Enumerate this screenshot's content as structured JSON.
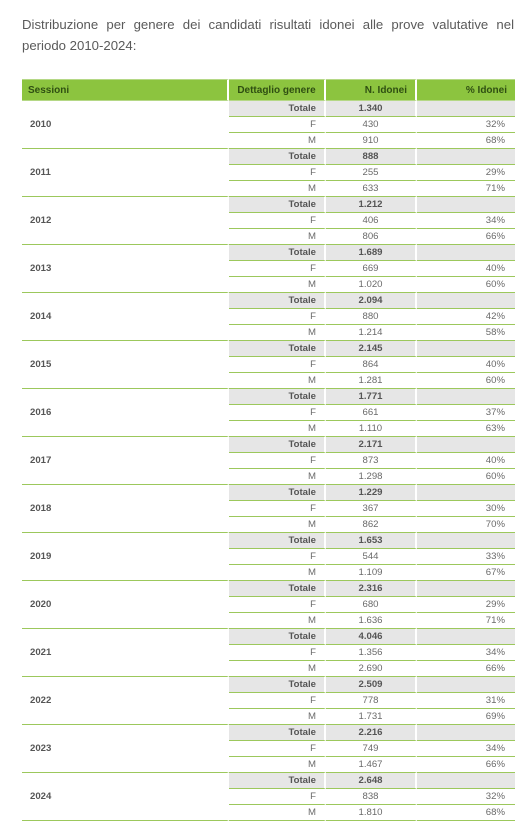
{
  "intro": "Distribuzione per genere dei candidati risultati idonei alle prove valutative nel periodo 2010-2024:",
  "headers": {
    "sessioni": "Sessioni",
    "dettaglio": "Dettaglio genere",
    "n_idonei": "N. Idonei",
    "pct_idonei": "% Idonei"
  },
  "labels": {
    "totale": "Totale",
    "f": "F",
    "m": "M"
  },
  "colors": {
    "header_bg": "#8cc43f",
    "rule": "#9cc85c",
    "total_bg": "#e6e6e6"
  },
  "rows": [
    {
      "year": "2010",
      "total": "1.340",
      "f": "430",
      "f_pct": "32%",
      "m": "910",
      "m_pct": "68%"
    },
    {
      "year": "2011",
      "total": "888",
      "f": "255",
      "f_pct": "29%",
      "m": "633",
      "m_pct": "71%"
    },
    {
      "year": "2012",
      "total": "1.212",
      "f": "406",
      "f_pct": "34%",
      "m": "806",
      "m_pct": "66%"
    },
    {
      "year": "2013",
      "total": "1.689",
      "f": "669",
      "f_pct": "40%",
      "m": "1.020",
      "m_pct": "60%"
    },
    {
      "year": "2014",
      "total": "2.094",
      "f": "880",
      "f_pct": "42%",
      "m": "1.214",
      "m_pct": "58%"
    },
    {
      "year": "2015",
      "total": "2.145",
      "f": "864",
      "f_pct": "40%",
      "m": "1.281",
      "m_pct": "60%"
    },
    {
      "year": "2016",
      "total": "1.771",
      "f": "661",
      "f_pct": "37%",
      "m": "1.110",
      "m_pct": "63%"
    },
    {
      "year": "2017",
      "total": "2.171",
      "f": "873",
      "f_pct": "40%",
      "m": "1.298",
      "m_pct": "60%"
    },
    {
      "year": "2018",
      "total": "1.229",
      "f": "367",
      "f_pct": "30%",
      "m": "862",
      "m_pct": "70%"
    },
    {
      "year": "2019",
      "total": "1.653",
      "f": "544",
      "f_pct": "33%",
      "m": "1.109",
      "m_pct": "67%"
    },
    {
      "year": "2020",
      "total": "2.316",
      "f": "680",
      "f_pct": "29%",
      "m": "1.636",
      "m_pct": "71%"
    },
    {
      "year": "2021",
      "total": "4.046",
      "f": "1.356",
      "f_pct": "34%",
      "m": "2.690",
      "m_pct": "66%"
    },
    {
      "year": "2022",
      "total": "2.509",
      "f": "778",
      "f_pct": "31%",
      "m": "1.731",
      "m_pct": "69%"
    },
    {
      "year": "2023",
      "total": "2.216",
      "f": "749",
      "f_pct": "34%",
      "m": "1.467",
      "m_pct": "66%"
    },
    {
      "year": "2024",
      "total": "2.648",
      "f": "838",
      "f_pct": "32%",
      "m": "1.810",
      "m_pct": "68%"
    }
  ]
}
